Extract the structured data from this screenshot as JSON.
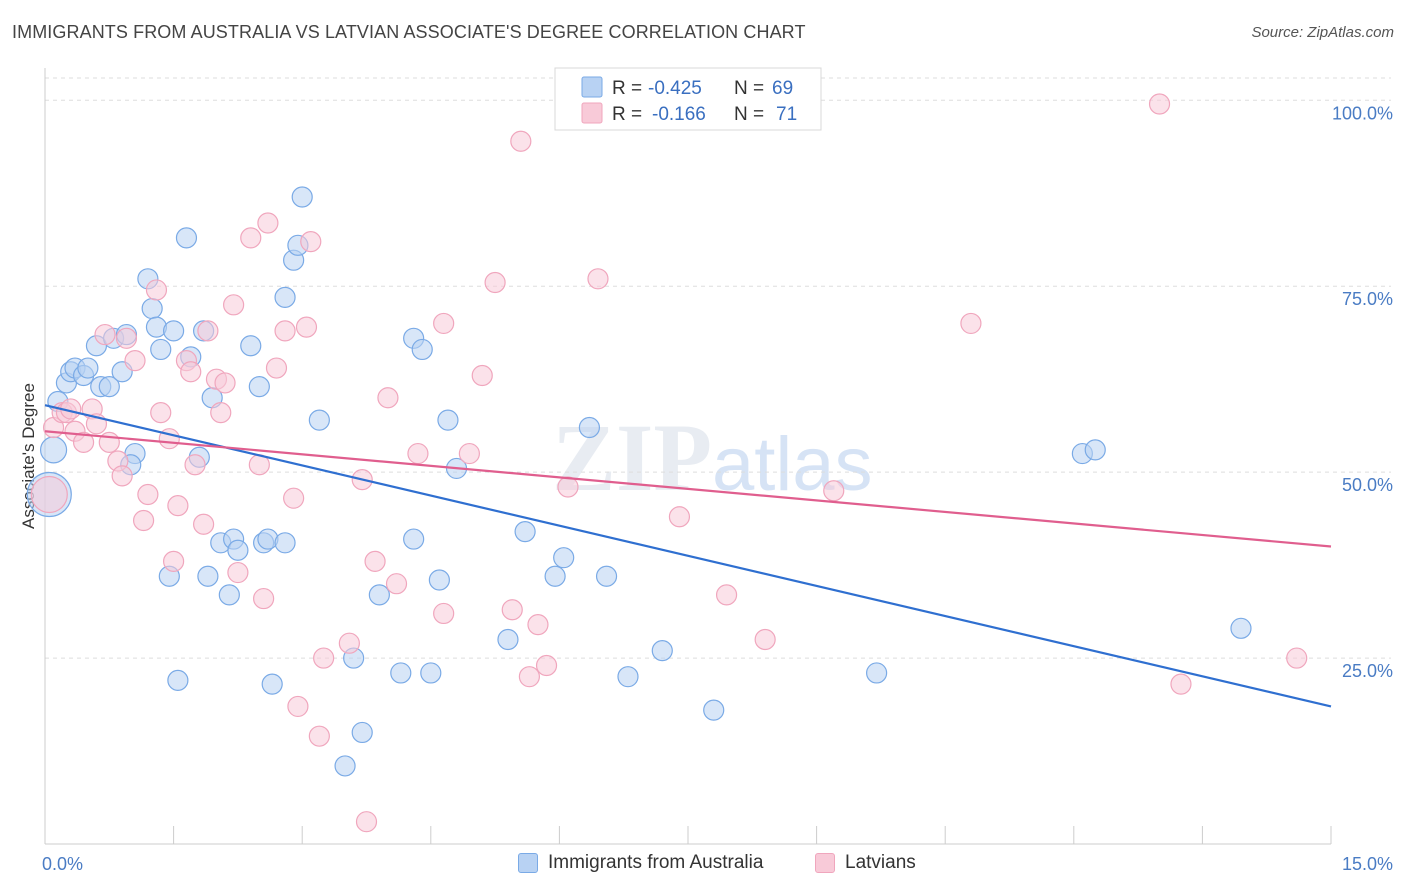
{
  "header": {
    "title": "IMMIGRANTS FROM AUSTRALIA VS LATVIAN ASSOCIATE'S DEGREE CORRELATION CHART",
    "source": "Source: ZipAtlas.com"
  },
  "watermark": {
    "zip": "ZIP",
    "atlas": "atlas"
  },
  "legend": {
    "rows": [
      {
        "r_label": "R =",
        "r_value": "-0.425",
        "n_label": "N =",
        "n_value": "69"
      },
      {
        "r_label": "R =",
        "r_value": "-0.166",
        "n_label": "N =",
        "n_value": "71"
      }
    ]
  },
  "chart_data": {
    "type": "scatter",
    "title": "IMMIGRANTS FROM AUSTRALIA VS LATVIAN ASSOCIATE'S DEGREE CORRELATION CHART",
    "xlabel": "",
    "ylabel": "Associate's Degree",
    "xlim": [
      0,
      15
    ],
    "ylim": [
      0,
      103
    ],
    "x_tick_labels": [
      {
        "value": 0,
        "label": "0.0%"
      },
      {
        "value": 15,
        "label": "15.0%"
      }
    ],
    "y_tick_labels": [
      {
        "value": 25,
        "label": "25.0%"
      },
      {
        "value": 50,
        "label": "50.0%"
      },
      {
        "value": 75,
        "label": "75.0%"
      },
      {
        "value": 100,
        "label": "100.0%"
      }
    ],
    "grid": true,
    "legend_position": "top-center",
    "series": [
      {
        "name": "Immigrants from Australia",
        "color": "#7aaae6",
        "fill": "#b8d2f3",
        "line_color": "#2f6fd0",
        "trend": {
          "x": [
            0,
            15
          ],
          "y": [
            59.0,
            18.5
          ]
        },
        "points": [
          [
            0.05,
            47,
            22
          ],
          [
            0.1,
            53,
            13
          ],
          [
            0.15,
            59.5,
            10
          ],
          [
            0.25,
            62,
            10
          ],
          [
            0.3,
            63.5,
            10
          ],
          [
            0.35,
            64,
            10
          ],
          [
            0.45,
            63,
            10
          ],
          [
            0.5,
            64,
            10
          ],
          [
            0.6,
            67,
            10
          ],
          [
            0.65,
            61.5,
            10
          ],
          [
            0.75,
            61.5,
            10
          ],
          [
            0.8,
            68,
            10
          ],
          [
            0.9,
            63.5,
            10
          ],
          [
            0.95,
            68.5,
            10
          ],
          [
            1.05,
            52.5,
            10
          ],
          [
            1.0,
            51,
            10
          ],
          [
            1.2,
            76,
            10
          ],
          [
            1.25,
            72,
            10
          ],
          [
            1.3,
            69.5,
            10
          ],
          [
            1.35,
            66.5,
            10
          ],
          [
            1.45,
            36,
            10
          ],
          [
            1.5,
            69,
            10
          ],
          [
            1.55,
            22,
            10
          ],
          [
            1.65,
            81.5,
            10
          ],
          [
            1.7,
            65.5,
            10
          ],
          [
            1.8,
            52,
            10
          ],
          [
            1.85,
            69,
            10
          ],
          [
            1.9,
            36,
            10
          ],
          [
            1.95,
            60,
            10
          ],
          [
            2.05,
            40.5,
            10
          ],
          [
            2.15,
            33.5,
            10
          ],
          [
            2.2,
            41,
            10
          ],
          [
            2.25,
            39.5,
            10
          ],
          [
            2.4,
            67,
            10
          ],
          [
            2.5,
            61.5,
            10
          ],
          [
            2.55,
            40.5,
            10
          ],
          [
            2.6,
            41,
            10
          ],
          [
            2.65,
            21.5,
            10
          ],
          [
            2.8,
            40.5,
            10
          ],
          [
            2.8,
            73.5,
            10
          ],
          [
            2.9,
            78.5,
            10
          ],
          [
            2.95,
            80.5,
            10
          ],
          [
            3.0,
            87,
            10
          ],
          [
            3.2,
            57,
            10
          ],
          [
            3.6,
            25,
            10
          ],
          [
            3.5,
            10.5,
            10
          ],
          [
            3.7,
            15,
            10
          ],
          [
            3.9,
            33.5,
            10
          ],
          [
            4.15,
            23,
            10
          ],
          [
            4.3,
            41,
            10
          ],
          [
            4.3,
            68,
            10
          ],
          [
            4.4,
            66.5,
            10
          ],
          [
            4.5,
            23,
            10
          ],
          [
            4.6,
            35.5,
            10
          ],
          [
            4.7,
            57,
            10
          ],
          [
            4.8,
            50.5,
            10
          ],
          [
            5.4,
            27.5,
            10
          ],
          [
            5.6,
            42,
            10
          ],
          [
            5.95,
            36,
            10
          ],
          [
            6.05,
            38.5,
            10
          ],
          [
            6.35,
            56,
            10
          ],
          [
            6.55,
            36,
            10
          ],
          [
            6.8,
            22.5,
            10
          ],
          [
            7.2,
            26,
            10
          ],
          [
            7.8,
            18,
            10
          ],
          [
            9.7,
            23,
            10
          ],
          [
            12.1,
            52.5,
            10
          ],
          [
            12.25,
            53,
            10
          ],
          [
            13.95,
            29,
            10
          ]
        ]
      },
      {
        "name": "Latvians",
        "color": "#f0a6bd",
        "fill": "#f8cad8",
        "line_color": "#e05e8e",
        "trend": {
          "x": [
            0,
            15
          ],
          "y": [
            55.5,
            40.0
          ]
        },
        "points": [
          [
            0.05,
            47,
            18
          ],
          [
            0.1,
            56,
            10
          ],
          [
            0.2,
            58,
            10
          ],
          [
            0.25,
            58,
            10
          ],
          [
            0.3,
            58.5,
            10
          ],
          [
            0.35,
            55.5,
            10
          ],
          [
            0.45,
            54,
            10
          ],
          [
            0.55,
            58.5,
            10
          ],
          [
            0.6,
            56.5,
            10
          ],
          [
            0.7,
            68.5,
            10
          ],
          [
            0.75,
            54,
            10
          ],
          [
            0.85,
            51.5,
            10
          ],
          [
            0.9,
            49.5,
            10
          ],
          [
            0.95,
            68,
            10
          ],
          [
            1.05,
            65,
            10
          ],
          [
            1.15,
            43.5,
            10
          ],
          [
            1.2,
            47,
            10
          ],
          [
            1.3,
            74.5,
            10
          ],
          [
            1.35,
            58,
            10
          ],
          [
            1.45,
            54.5,
            10
          ],
          [
            1.5,
            38,
            10
          ],
          [
            1.55,
            45.5,
            10
          ],
          [
            1.65,
            65,
            10
          ],
          [
            1.7,
            63.5,
            10
          ],
          [
            1.75,
            51,
            10
          ],
          [
            1.85,
            43,
            10
          ],
          [
            1.9,
            69,
            10
          ],
          [
            2.0,
            62.5,
            10
          ],
          [
            2.05,
            58,
            10
          ],
          [
            2.1,
            62,
            10
          ],
          [
            2.2,
            72.5,
            10
          ],
          [
            2.25,
            36.5,
            10
          ],
          [
            2.4,
            81.5,
            10
          ],
          [
            2.5,
            51,
            10
          ],
          [
            2.55,
            33,
            10
          ],
          [
            2.6,
            83.5,
            10
          ],
          [
            2.7,
            64,
            10
          ],
          [
            2.8,
            69,
            10
          ],
          [
            2.9,
            46.5,
            10
          ],
          [
            2.95,
            18.5,
            10
          ],
          [
            3.05,
            69.5,
            10
          ],
          [
            3.1,
            81,
            10
          ],
          [
            3.2,
            14.5,
            10
          ],
          [
            3.25,
            25,
            10
          ],
          [
            3.55,
            27,
            10
          ],
          [
            3.7,
            49,
            10
          ],
          [
            3.75,
            3,
            10
          ],
          [
            3.85,
            38,
            10
          ],
          [
            4.0,
            60,
            10
          ],
          [
            4.1,
            35,
            10
          ],
          [
            4.35,
            52.5,
            10
          ],
          [
            4.65,
            70,
            10
          ],
          [
            4.65,
            31,
            10
          ],
          [
            4.95,
            52.5,
            10
          ],
          [
            5.1,
            63,
            10
          ],
          [
            5.25,
            75.5,
            10
          ],
          [
            5.45,
            31.5,
            10
          ],
          [
            5.55,
            94.5,
            10
          ],
          [
            5.65,
            22.5,
            10
          ],
          [
            5.75,
            29.5,
            10
          ],
          [
            5.85,
            24,
            10
          ],
          [
            6.1,
            48,
            10
          ],
          [
            6.45,
            76,
            10
          ],
          [
            7.4,
            44,
            10
          ],
          [
            7.95,
            33.5,
            10
          ],
          [
            8.4,
            27.5,
            10
          ],
          [
            9.2,
            47.5,
            10
          ],
          [
            10.8,
            70,
            10
          ],
          [
            13.0,
            99.5,
            10
          ],
          [
            13.25,
            21.5,
            10
          ],
          [
            14.6,
            25,
            10
          ]
        ]
      }
    ]
  }
}
